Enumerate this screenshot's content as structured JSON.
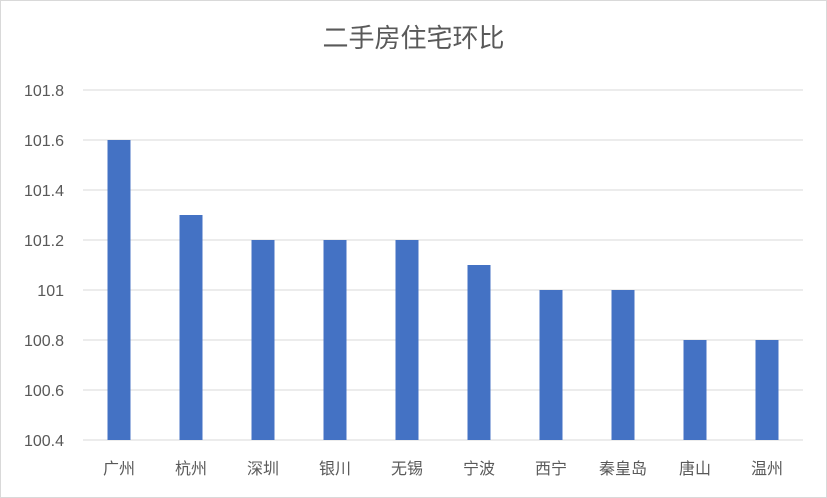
{
  "chart_data": {
    "type": "bar",
    "title": "二手房住宅环比",
    "xlabel": "",
    "ylabel": "",
    "ylim": [
      100.4,
      101.8
    ],
    "yticks": [
      "100.4",
      "100.6",
      "100.8",
      "101",
      "101.2",
      "101.4",
      "101.6",
      "101.8"
    ],
    "grid": true,
    "legend": "none",
    "bar_color": "#4472C4",
    "grid_color": "#d9d9d9",
    "categories": [
      "广州",
      "杭州",
      "深圳",
      "银川",
      "无锡",
      "宁波",
      "西宁",
      "秦皇岛",
      "唐山",
      "温州"
    ],
    "values": [
      101.6,
      101.3,
      101.2,
      101.2,
      101.2,
      101.1,
      101.0,
      101.0,
      100.8,
      100.8
    ]
  }
}
